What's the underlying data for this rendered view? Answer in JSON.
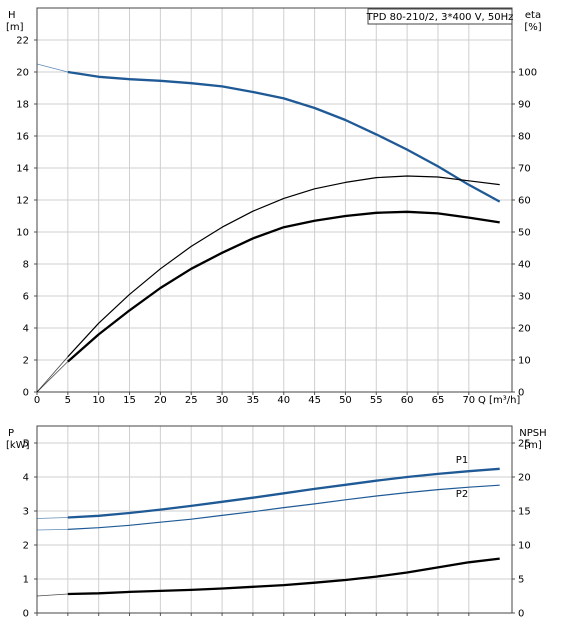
{
  "chart_data": [
    {
      "type": "line",
      "title": "TPD 80-210/2, 3*400 V, 50Hz",
      "xlabel": "Q [m³/h]",
      "ylabel_left": [
        "H",
        "[m]"
      ],
      "ylabel_right": [
        "eta",
        "[%]"
      ],
      "xlim": [
        0,
        77
      ],
      "ylim_left": [
        0,
        24
      ],
      "ylim_right": [
        0,
        120
      ],
      "x_ticks": [
        0,
        5,
        10,
        15,
        20,
        25,
        30,
        35,
        40,
        45,
        50,
        55,
        60,
        65,
        70
      ],
      "y_ticks_left": [
        0,
        2,
        4,
        6,
        8,
        10,
        12,
        14,
        16,
        18,
        20,
        22
      ],
      "y_ticks_right": [
        0,
        10,
        20,
        30,
        40,
        50,
        60,
        70,
        80,
        90,
        100
      ],
      "grid": true,
      "series": [
        {
          "axis": "left",
          "color": "#1f5a96",
          "x": [
            0,
            5,
            10,
            15,
            20,
            25,
            30,
            35,
            40,
            45,
            50,
            55,
            60,
            65,
            70,
            75
          ],
          "y": [
            20.5,
            20.0,
            19.7,
            19.55,
            19.45,
            19.3,
            19.1,
            18.75,
            18.35,
            17.75,
            17.0,
            16.1,
            15.15,
            14.1,
            12.95,
            11.9
          ],
          "visible_from": 5
        },
        {
          "axis": "right",
          "color": "#000000",
          "x": [
            0,
            5,
            10,
            15,
            20,
            25,
            30,
            35,
            40,
            45,
            50,
            55,
            60,
            65,
            70,
            75
          ],
          "y": [
            0,
            11,
            21.5,
            30.5,
            38.5,
            45.5,
            51.5,
            56.5,
            60.5,
            63.5,
            65.5,
            67,
            67.5,
            67.2,
            66,
            64.8
          ],
          "visible_from": 5
        },
        {
          "axis": "right",
          "color": "#000000",
          "x": [
            0,
            5,
            10,
            15,
            20,
            25,
            30,
            35,
            40,
            45,
            50,
            55,
            60,
            65,
            70,
            75
          ],
          "y": [
            0,
            9.5,
            18,
            25.5,
            32.5,
            38.5,
            43.5,
            48,
            51.5,
            53.5,
            55,
            56,
            56.3,
            55.8,
            54.5,
            53
          ],
          "visible_from": 5
        }
      ]
    },
    {
      "type": "line",
      "xlim": [
        0,
        77
      ],
      "ylabel_left": [
        "P",
        "[kW]"
      ],
      "ylabel_right": [
        "NPSH",
        "[m]"
      ],
      "ylim_left": [
        0,
        5.5
      ],
      "ylim_right": [
        0,
        27.5
      ],
      "y_ticks_left": [
        0,
        1,
        2,
        3,
        4,
        5
      ],
      "y_ticks_right": [
        0,
        5,
        10,
        15,
        20,
        25
      ],
      "x_ticks": [
        0,
        5,
        10,
        15,
        20,
        25,
        30,
        35,
        40,
        45,
        50,
        55,
        60,
        65,
        70
      ],
      "grid": true,
      "series": [
        {
          "name": "P1",
          "axis": "left",
          "color": "#1f5a96",
          "x": [
            0,
            5,
            10,
            15,
            20,
            25,
            30,
            35,
            40,
            45,
            50,
            55,
            60,
            65,
            70,
            75
          ],
          "y": [
            2.78,
            2.81,
            2.86,
            2.94,
            3.04,
            3.15,
            3.27,
            3.39,
            3.52,
            3.65,
            3.77,
            3.89,
            4.0,
            4.09,
            4.17,
            4.24
          ],
          "visible_from": 5
        },
        {
          "name": "P2",
          "axis": "left",
          "color": "#1f5a96",
          "x": [
            0,
            5,
            10,
            15,
            20,
            25,
            30,
            35,
            40,
            45,
            50,
            55,
            60,
            65,
            70,
            75
          ],
          "y": [
            2.44,
            2.46,
            2.51,
            2.58,
            2.67,
            2.76,
            2.87,
            2.98,
            3.1,
            3.21,
            3.33,
            3.44,
            3.54,
            3.63,
            3.7,
            3.76
          ],
          "visible_from": 5
        },
        {
          "axis": "right",
          "color": "#000000",
          "x": [
            0,
            5,
            10,
            15,
            20,
            25,
            30,
            35,
            40,
            45,
            50,
            55,
            60,
            65,
            70,
            75
          ],
          "y": [
            2.5,
            2.8,
            2.9,
            3.1,
            3.25,
            3.4,
            3.6,
            3.85,
            4.1,
            4.45,
            4.85,
            5.35,
            5.95,
            6.7,
            7.45,
            8.0
          ],
          "visible_from": 5
        }
      ]
    }
  ]
}
